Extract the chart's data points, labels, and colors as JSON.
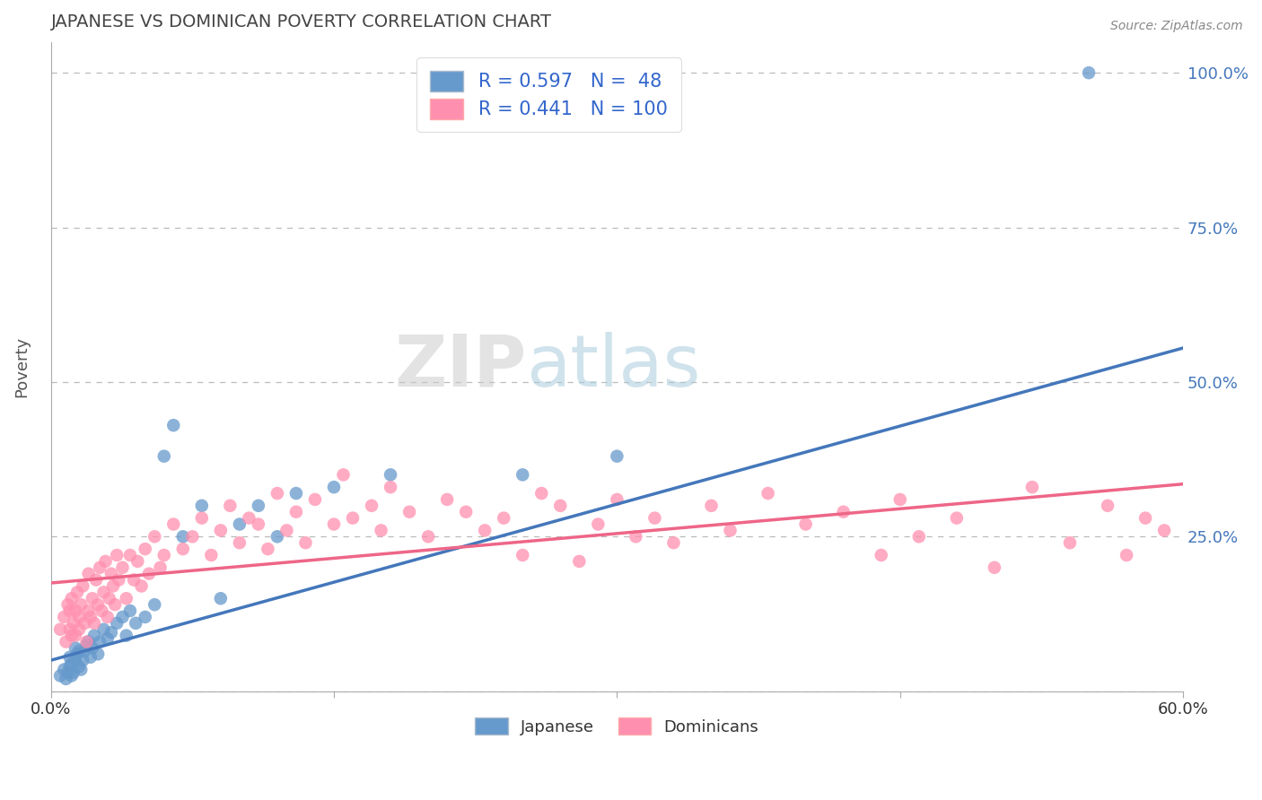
{
  "title": "JAPANESE VS DOMINICAN POVERTY CORRELATION CHART",
  "source": "Source: ZipAtlas.com",
  "ylabel": "Poverty",
  "xlim": [
    0.0,
    0.6
  ],
  "ylim": [
    0.0,
    1.05
  ],
  "yticks": [
    0.0,
    0.25,
    0.5,
    0.75,
    1.0
  ],
  "ytick_labels": [
    "",
    "25.0%",
    "50.0%",
    "75.0%",
    "100.0%"
  ],
  "xticks": [
    0.0,
    0.6
  ],
  "xtick_labels": [
    "0.0%",
    "60.0%"
  ],
  "japanese_color": "#6699CC",
  "dominican_color": "#FF8FAF",
  "line_japanese_color": "#4477BB",
  "line_dominican_color": "#EE6688",
  "japanese_R": 0.597,
  "japanese_N": 48,
  "dominican_R": 0.441,
  "dominican_N": 100,
  "legend_R_color": "#3366CC",
  "watermark": "ZIPatlas",
  "jp_line_x0": 0.0,
  "jp_line_y0": 0.05,
  "jp_line_x1": 0.6,
  "jp_line_y1": 0.555,
  "dr_line_x0": 0.0,
  "dr_line_y0": 0.175,
  "dr_line_x1": 0.6,
  "dr_line_y1": 0.335,
  "japanese_scatter": [
    [
      0.005,
      0.025
    ],
    [
      0.007,
      0.035
    ],
    [
      0.008,
      0.02
    ],
    [
      0.009,
      0.03
    ],
    [
      0.01,
      0.04
    ],
    [
      0.01,
      0.055
    ],
    [
      0.011,
      0.025
    ],
    [
      0.011,
      0.045
    ],
    [
      0.012,
      0.03
    ],
    [
      0.013,
      0.05
    ],
    [
      0.013,
      0.07
    ],
    [
      0.014,
      0.06
    ],
    [
      0.015,
      0.04
    ],
    [
      0.015,
      0.065
    ],
    [
      0.016,
      0.035
    ],
    [
      0.017,
      0.05
    ],
    [
      0.018,
      0.065
    ],
    [
      0.019,
      0.075
    ],
    [
      0.02,
      0.08
    ],
    [
      0.021,
      0.055
    ],
    [
      0.022,
      0.07
    ],
    [
      0.023,
      0.09
    ],
    [
      0.025,
      0.06
    ],
    [
      0.026,
      0.08
    ],
    [
      0.028,
      0.1
    ],
    [
      0.03,
      0.085
    ],
    [
      0.032,
      0.095
    ],
    [
      0.035,
      0.11
    ],
    [
      0.038,
      0.12
    ],
    [
      0.04,
      0.09
    ],
    [
      0.042,
      0.13
    ],
    [
      0.045,
      0.11
    ],
    [
      0.05,
      0.12
    ],
    [
      0.055,
      0.14
    ],
    [
      0.06,
      0.38
    ],
    [
      0.065,
      0.43
    ],
    [
      0.07,
      0.25
    ],
    [
      0.08,
      0.3
    ],
    [
      0.09,
      0.15
    ],
    [
      0.1,
      0.27
    ],
    [
      0.11,
      0.3
    ],
    [
      0.12,
      0.25
    ],
    [
      0.13,
      0.32
    ],
    [
      0.15,
      0.33
    ],
    [
      0.18,
      0.35
    ],
    [
      0.25,
      0.35
    ],
    [
      0.3,
      0.38
    ],
    [
      0.55,
      1.0
    ]
  ],
  "dominican_scatter": [
    [
      0.005,
      0.1
    ],
    [
      0.007,
      0.12
    ],
    [
      0.008,
      0.08
    ],
    [
      0.009,
      0.14
    ],
    [
      0.01,
      0.1
    ],
    [
      0.01,
      0.13
    ],
    [
      0.011,
      0.09
    ],
    [
      0.011,
      0.15
    ],
    [
      0.012,
      0.11
    ],
    [
      0.013,
      0.13
    ],
    [
      0.013,
      0.09
    ],
    [
      0.014,
      0.16
    ],
    [
      0.015,
      0.12
    ],
    [
      0.015,
      0.1
    ],
    [
      0.016,
      0.14
    ],
    [
      0.017,
      0.17
    ],
    [
      0.018,
      0.11
    ],
    [
      0.019,
      0.08
    ],
    [
      0.02,
      0.19
    ],
    [
      0.02,
      0.13
    ],
    [
      0.021,
      0.12
    ],
    [
      0.022,
      0.15
    ],
    [
      0.023,
      0.11
    ],
    [
      0.024,
      0.18
    ],
    [
      0.025,
      0.14
    ],
    [
      0.026,
      0.2
    ],
    [
      0.027,
      0.13
    ],
    [
      0.028,
      0.16
    ],
    [
      0.029,
      0.21
    ],
    [
      0.03,
      0.12
    ],
    [
      0.031,
      0.15
    ],
    [
      0.032,
      0.19
    ],
    [
      0.033,
      0.17
    ],
    [
      0.034,
      0.14
    ],
    [
      0.035,
      0.22
    ],
    [
      0.036,
      0.18
    ],
    [
      0.038,
      0.2
    ],
    [
      0.04,
      0.15
    ],
    [
      0.042,
      0.22
    ],
    [
      0.044,
      0.18
    ],
    [
      0.046,
      0.21
    ],
    [
      0.048,
      0.17
    ],
    [
      0.05,
      0.23
    ],
    [
      0.052,
      0.19
    ],
    [
      0.055,
      0.25
    ],
    [
      0.058,
      0.2
    ],
    [
      0.06,
      0.22
    ],
    [
      0.065,
      0.27
    ],
    [
      0.07,
      0.23
    ],
    [
      0.075,
      0.25
    ],
    [
      0.08,
      0.28
    ],
    [
      0.085,
      0.22
    ],
    [
      0.09,
      0.26
    ],
    [
      0.095,
      0.3
    ],
    [
      0.1,
      0.24
    ],
    [
      0.105,
      0.28
    ],
    [
      0.11,
      0.27
    ],
    [
      0.115,
      0.23
    ],
    [
      0.12,
      0.32
    ],
    [
      0.125,
      0.26
    ],
    [
      0.13,
      0.29
    ],
    [
      0.135,
      0.24
    ],
    [
      0.14,
      0.31
    ],
    [
      0.15,
      0.27
    ],
    [
      0.155,
      0.35
    ],
    [
      0.16,
      0.28
    ],
    [
      0.17,
      0.3
    ],
    [
      0.175,
      0.26
    ],
    [
      0.18,
      0.33
    ],
    [
      0.19,
      0.29
    ],
    [
      0.2,
      0.25
    ],
    [
      0.21,
      0.31
    ],
    [
      0.22,
      0.29
    ],
    [
      0.23,
      0.26
    ],
    [
      0.24,
      0.28
    ],
    [
      0.25,
      0.22
    ],
    [
      0.26,
      0.32
    ],
    [
      0.27,
      0.3
    ],
    [
      0.28,
      0.21
    ],
    [
      0.29,
      0.27
    ],
    [
      0.3,
      0.31
    ],
    [
      0.31,
      0.25
    ],
    [
      0.32,
      0.28
    ],
    [
      0.33,
      0.24
    ],
    [
      0.35,
      0.3
    ],
    [
      0.36,
      0.26
    ],
    [
      0.38,
      0.32
    ],
    [
      0.4,
      0.27
    ],
    [
      0.42,
      0.29
    ],
    [
      0.44,
      0.22
    ],
    [
      0.45,
      0.31
    ],
    [
      0.46,
      0.25
    ],
    [
      0.48,
      0.28
    ],
    [
      0.5,
      0.2
    ],
    [
      0.52,
      0.33
    ],
    [
      0.54,
      0.24
    ],
    [
      0.56,
      0.3
    ],
    [
      0.57,
      0.22
    ],
    [
      0.58,
      0.28
    ],
    [
      0.59,
      0.26
    ]
  ]
}
